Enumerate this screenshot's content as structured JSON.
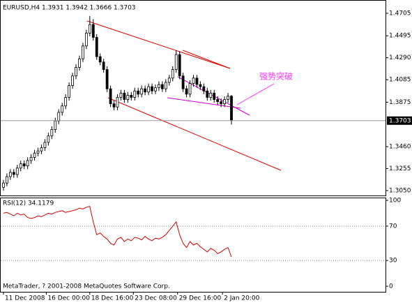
{
  "chart_data": [
    {
      "type": "candlestick",
      "title": "EURUSD,H4 1.3931 1.3942 1.3666 1.3703",
      "open": [
        1.308,
        1.312,
        1.318,
        1.322,
        1.32,
        1.326,
        1.33,
        1.328,
        1.333,
        1.336,
        1.34,
        1.342,
        1.345,
        1.35,
        1.356,
        1.362,
        1.37,
        1.378,
        1.384,
        1.392,
        1.403,
        1.412,
        1.42,
        1.428,
        1.44,
        1.452,
        1.46,
        1.448,
        1.43,
        1.425,
        1.418,
        1.4,
        1.386,
        1.383,
        1.392,
        1.396,
        1.39,
        1.394,
        1.392,
        1.398,
        1.395,
        1.4,
        1.397,
        1.402,
        1.398,
        1.401,
        1.404,
        1.4,
        1.406,
        1.41,
        1.418,
        1.432,
        1.412,
        1.4,
        1.395,
        1.405,
        1.41,
        1.404,
        1.402,
        1.398,
        1.392,
        1.396,
        1.39,
        1.388,
        1.386,
        1.39,
        1.3931
      ],
      "high": [
        1.315,
        1.321,
        1.325,
        1.325,
        1.329,
        1.333,
        1.333,
        1.336,
        1.339,
        1.343,
        1.345,
        1.348,
        1.353,
        1.359,
        1.365,
        1.373,
        1.381,
        1.387,
        1.395,
        1.406,
        1.415,
        1.423,
        1.431,
        1.443,
        1.455,
        1.468,
        1.465,
        1.451,
        1.433,
        1.428,
        1.421,
        1.403,
        1.389,
        1.395,
        1.399,
        1.399,
        1.397,
        1.397,
        1.401,
        1.401,
        1.403,
        1.403,
        1.405,
        1.405,
        1.404,
        1.407,
        1.407,
        1.409,
        1.413,
        1.421,
        1.436,
        1.435,
        1.415,
        1.403,
        1.408,
        1.413,
        1.413,
        1.407,
        1.405,
        1.401,
        1.399,
        1.399,
        1.393,
        1.391,
        1.393,
        1.3961,
        1.3942
      ],
      "low": [
        1.305,
        1.309,
        1.315,
        1.317,
        1.317,
        1.323,
        1.325,
        1.325,
        1.33,
        1.333,
        1.337,
        1.339,
        1.342,
        1.347,
        1.353,
        1.359,
        1.367,
        1.375,
        1.381,
        1.389,
        1.4,
        1.409,
        1.417,
        1.425,
        1.437,
        1.449,
        1.445,
        1.427,
        1.422,
        1.415,
        1.397,
        1.383,
        1.38,
        1.38,
        1.389,
        1.387,
        1.387,
        1.389,
        1.389,
        1.392,
        1.392,
        1.394,
        1.394,
        1.395,
        1.395,
        1.398,
        1.397,
        1.397,
        1.403,
        1.407,
        1.415,
        1.409,
        1.397,
        1.392,
        1.392,
        1.402,
        1.401,
        1.399,
        1.395,
        1.389,
        1.389,
        1.387,
        1.385,
        1.383,
        1.383,
        1.387,
        1.3666
      ],
      "close": [
        1.312,
        1.318,
        1.322,
        1.32,
        1.326,
        1.33,
        1.328,
        1.333,
        1.336,
        1.34,
        1.342,
        1.345,
        1.35,
        1.356,
        1.362,
        1.37,
        1.378,
        1.384,
        1.392,
        1.403,
        1.412,
        1.42,
        1.428,
        1.44,
        1.452,
        1.46,
        1.448,
        1.43,
        1.425,
        1.418,
        1.4,
        1.386,
        1.383,
        1.392,
        1.396,
        1.39,
        1.394,
        1.392,
        1.398,
        1.395,
        1.4,
        1.397,
        1.402,
        1.398,
        1.401,
        1.404,
        1.4,
        1.406,
        1.41,
        1.418,
        1.432,
        1.412,
        1.4,
        1.395,
        1.405,
        1.41,
        1.404,
        1.402,
        1.398,
        1.392,
        1.396,
        1.39,
        1.388,
        1.386,
        1.39,
        1.3931,
        1.3703
      ],
      "xlim": [
        -1,
        110.6
      ],
      "ylim": [
        1.3004,
        1.4816
      ],
      "yticks": [
        1.4705,
        1.4495,
        {
          "value": 1.429,
          "label": "1.4290"
        },
        1.4085,
        1.3875,
        {
          "value": 1.346,
          "label": "1.3460"
        },
        1.3255,
        {
          "value": 1.305,
          "label": "1.3050"
        }
      ],
      "current_price": 1.3703,
      "annotation": "强势突破"
    },
    {
      "type": "line",
      "title": "RSI(12) 34.1179",
      "color": "#cc0000",
      "values": [
        85,
        86,
        84,
        82,
        85,
        83,
        84,
        80,
        79,
        80,
        82,
        81,
        83,
        85,
        84,
        86,
        87,
        88,
        86,
        87,
        88,
        89,
        91,
        90,
        92,
        93,
        75,
        60,
        62,
        58,
        55,
        50,
        48,
        55,
        57,
        52,
        55,
        53,
        57,
        56,
        54,
        58,
        55,
        53,
        56,
        55,
        57,
        60,
        65,
        70,
        75,
        60,
        50,
        45,
        52,
        48,
        50,
        46,
        43,
        40,
        44,
        42,
        38,
        40,
        43,
        45,
        34.1179
      ],
      "xlim": [
        -1,
        110.6
      ],
      "ylim": [
        0,
        100
      ],
      "yticks": [
        100,
        70,
        30,
        0
      ],
      "grid": true,
      "xticks": [
        {
          "value": 0,
          "label": "11 Dec 2008"
        },
        {
          "value": 12.4,
          "label": "16 Dec 00:00"
        },
        {
          "value": 25,
          "label": "18 Dec 16:00"
        },
        {
          "value": 37.6,
          "label": "23 Dec 08:00"
        },
        {
          "value": 50.4,
          "label": "29 Dec 16:00"
        },
        {
          "value": 63.4,
          "label": "2 Jan 20:00"
        }
      ]
    }
  ],
  "footer": "MetaTrader, ? 2001-2008 MetaQuotes Software Corp."
}
